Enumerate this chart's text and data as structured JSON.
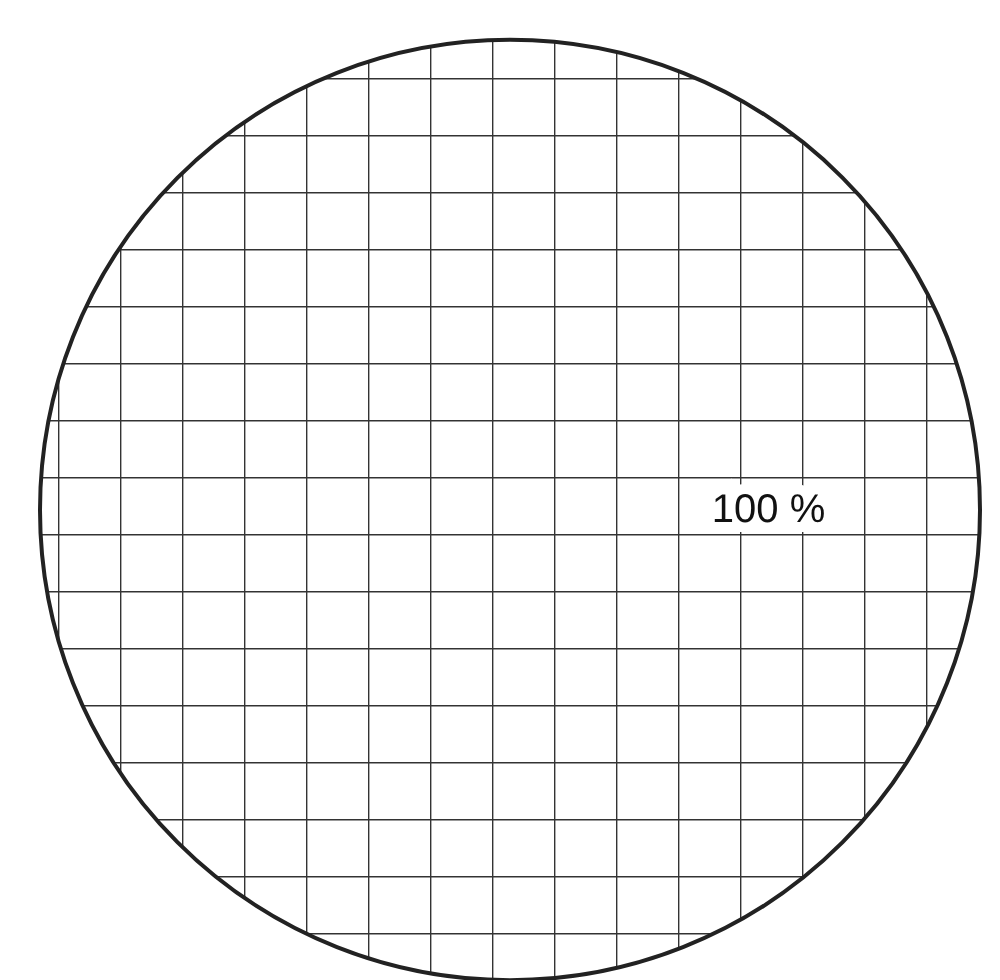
{
  "chart_data": {
    "type": "pie",
    "categories": [
      null
    ],
    "values": [
      100
    ],
    "colors": [
      "#ffffff"
    ],
    "value_labels": [
      "100 %"
    ]
  }
}
